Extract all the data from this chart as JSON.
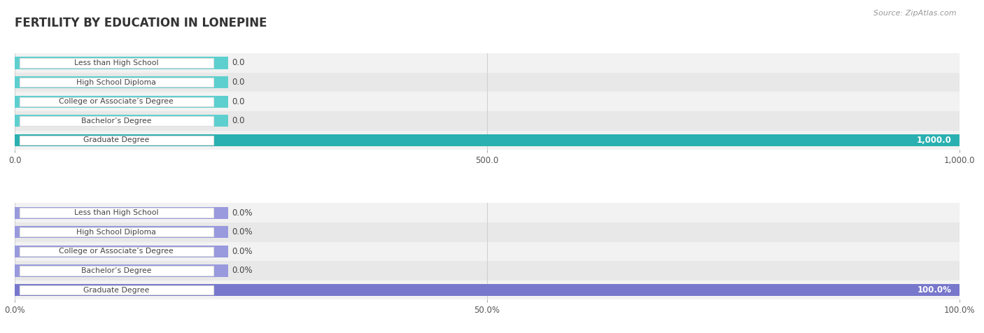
{
  "title": "FERTILITY BY EDUCATION IN LONEPINE",
  "source": "Source: ZipAtlas.com",
  "categories": [
    "Less than High School",
    "High School Diploma",
    "College or Associate’s Degree",
    "Bachelor’s Degree",
    "Graduate Degree"
  ],
  "values_abs": [
    0.0,
    0.0,
    0.0,
    0.0,
    1000.0
  ],
  "values_pct": [
    0.0,
    0.0,
    0.0,
    0.0,
    100.0
  ],
  "abs_xlim": [
    0,
    1000.0
  ],
  "pct_xlim": [
    0,
    100.0
  ],
  "abs_xticks": [
    0.0,
    500.0,
    1000.0
  ],
  "pct_xticks": [
    0.0,
    50.0,
    100.0
  ],
  "abs_xtick_labels": [
    "0.0",
    "500.0",
    "1,000.0"
  ],
  "pct_xtick_labels": [
    "0.0%",
    "50.0%",
    "100.0%"
  ],
  "bar_color_top": "#5ecfcf",
  "bar_color_bottom": "#9999dd",
  "bar_full_color_top": "#2ab0b0",
  "bar_full_color_bottom": "#7777cc",
  "row_bg_even": "#f2f2f2",
  "row_bg_odd": "#e8e8e8",
  "grid_color": "#d0d0d0",
  "title_color": "#333333",
  "source_color": "#999999",
  "bar_height": 0.62,
  "label_box_color": "#ffffff",
  "label_text_color": "#444444",
  "value_text_color": "#444444",
  "full_bar_text_color": "#ffffff"
}
